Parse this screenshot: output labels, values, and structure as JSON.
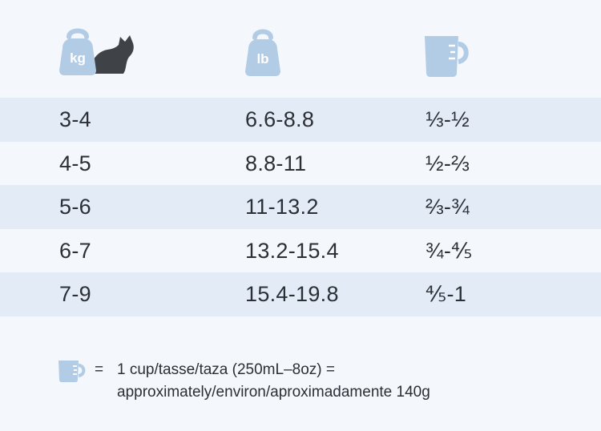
{
  "header": {
    "kg_icon_label": "kg",
    "lb_icon_label": "lb",
    "cup_icon_name": "measuring-cup-icon",
    "cat_icon_name": "cat-silhouette-icon"
  },
  "colors": {
    "icon_blue": "#b3cce6",
    "cat_dark": "#3f4247",
    "row_shaded": "#e3ebf6",
    "background": "#f4f7fc",
    "text": "#2b2f36"
  },
  "rows": [
    {
      "kg": "3-4",
      "lb": "6.6-8.8",
      "cups": "⅓-½"
    },
    {
      "kg": "4-5",
      "lb": "8.8-11",
      "cups": "½-⅔"
    },
    {
      "kg": "5-6",
      "lb": "11-13.2",
      "cups": "⅔-¾"
    },
    {
      "kg": "6-7",
      "lb": "13.2-15.4",
      "cups": "¾-⅘"
    },
    {
      "kg": "7-9",
      "lb": "15.4-19.8",
      "cups": "⅘-1"
    }
  ],
  "legend": {
    "equals": "=",
    "line1": "1 cup/tasse/taza (250mL–8oz) =",
    "line2": "approximately/environ/aproximadamente 140g"
  }
}
